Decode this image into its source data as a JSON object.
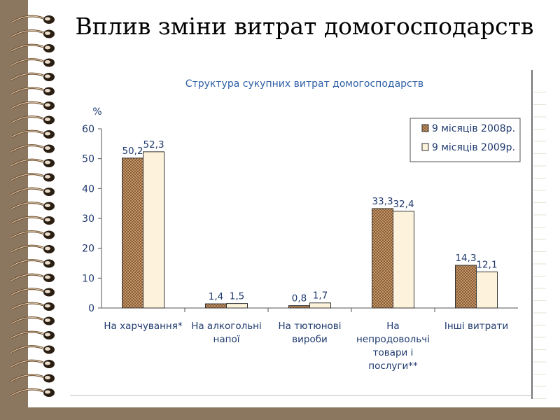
{
  "slide_title": "Вплив зміни витрат домогосподарств",
  "colors": {
    "background": "#8b7660",
    "series_2008": "#b98c63",
    "series_2009": "#fdf3dc",
    "text": "#1f3a6e",
    "chart_title": "#2f5fa6"
  },
  "chart_data": {
    "type": "bar",
    "title": "Структура сукупних витрат домогосподарств",
    "ylabel": "%",
    "xlabel": "",
    "ylim": [
      0,
      60
    ],
    "yticks": [
      "0",
      "10",
      "20",
      "30",
      "40",
      "50",
      "60"
    ],
    "grid": false,
    "legend_position": "top-right",
    "categories": [
      [
        "На харчування*"
      ],
      [
        "На алкогольні",
        "напої"
      ],
      [
        "На тютюнові",
        "вироби"
      ],
      [
        "На",
        "непродовольчі",
        "товари і",
        "послуги**"
      ],
      [
        "Інші витрати"
      ]
    ],
    "series": [
      {
        "name": "9 місяців 2008р.",
        "values": [
          50.2,
          1.4,
          0.8,
          33.3,
          14.3
        ],
        "labels": [
          "50,2",
          "1,4",
          "0,8",
          "33,3",
          "14,3"
        ]
      },
      {
        "name": "9 місяців 2009р.",
        "values": [
          52.3,
          1.5,
          1.7,
          32.4,
          12.1
        ],
        "labels": [
          "52,3",
          "1,5",
          "1,7",
          "32,4",
          "12,1"
        ]
      }
    ]
  }
}
